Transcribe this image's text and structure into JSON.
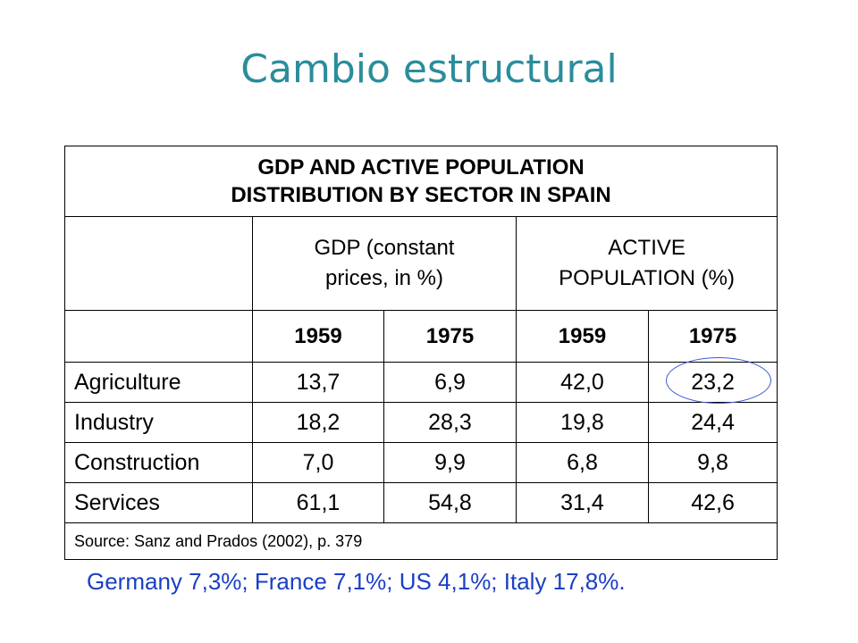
{
  "slide": {
    "title": "Cambio estructural"
  },
  "table": {
    "title_line1": "GDP AND ACTIVE POPULATION",
    "title_line2": "DISTRIBUTION BY SECTOR IN SPAIN",
    "gdp_header_line1": "GDP (constant",
    "gdp_header_line2": "prices, in %)",
    "pop_header_line1": "ACTIVE",
    "pop_header_line2": "POPULATION (%)",
    "years": [
      "1959",
      "1975",
      "1959",
      "1975"
    ],
    "rows": [
      {
        "sector": "Agriculture",
        "gdp_1959": "13,7",
        "gdp_1975": "6,9",
        "pop_1959": "42,0",
        "pop_1975": "23,2"
      },
      {
        "sector": "Industry",
        "gdp_1959": "18,2",
        "gdp_1975": "28,3",
        "pop_1959": "19,8",
        "pop_1975": "24,4"
      },
      {
        "sector": "Construction",
        "gdp_1959": "7,0",
        "gdp_1975": "9,9",
        "pop_1959": "6,8",
        "pop_1975": "9,8"
      },
      {
        "sector": "Services",
        "gdp_1959": "61,1",
        "gdp_1975": "54,8",
        "pop_1959": "31,4",
        "pop_1975": "42,6"
      }
    ],
    "source": "Source: Sanz and Prados (2002), p. 379"
  },
  "footnote": "Germany 7,3%; France 7,1%; US 4,1%; Italy 17,8%.",
  "colors": {
    "title": "#2a8d9c",
    "footnote": "#1a3fc4",
    "highlight_ellipse": "#3b5bdb"
  }
}
